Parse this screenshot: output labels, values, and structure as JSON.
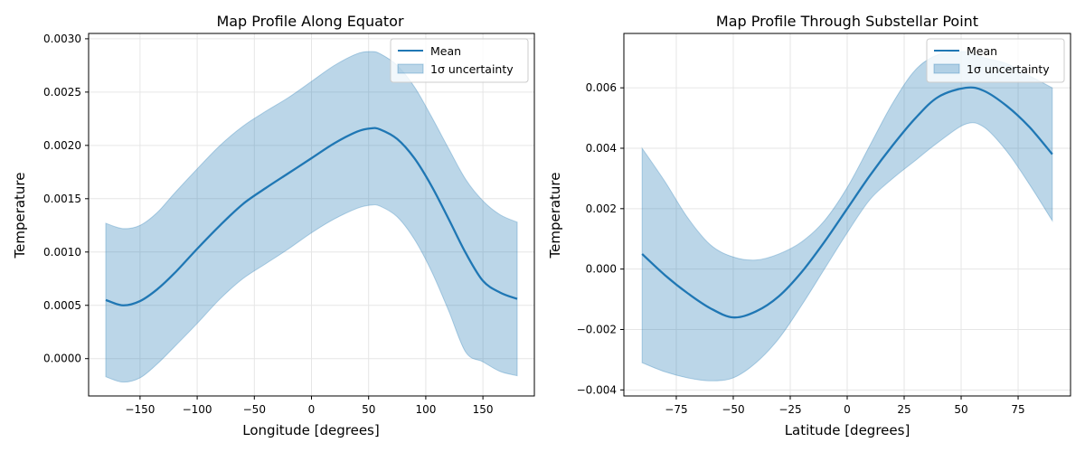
{
  "chart_data": [
    {
      "type": "line",
      "title": "Map Profile Along Equator",
      "xlabel": "Longitude [degrees]",
      "ylabel": "Temperature",
      "xlim": [
        -195,
        195
      ],
      "ylim": [
        -0.00035,
        0.00305
      ],
      "xticks": [
        -150,
        -100,
        -50,
        0,
        50,
        100,
        150
      ],
      "xtick_labels": [
        "−150",
        "−100",
        "−50",
        "0",
        "50",
        "100",
        "150"
      ],
      "yticks": [
        0.0,
        0.0005,
        0.001,
        0.0015,
        0.002,
        0.0025,
        0.003
      ],
      "ytick_labels": [
        "0.0000",
        "0.0005",
        "0.0010",
        "0.0015",
        "0.0020",
        "0.0025",
        "0.0030"
      ],
      "grid": true,
      "legend_position": "top-right",
      "legend": [
        "Mean",
        "1σ uncertainty"
      ],
      "colors": {
        "line": "#1f77b4",
        "band": "#1f77b4"
      },
      "series": [
        {
          "name": "Mean",
          "x": [
            -180,
            -165,
            -150,
            -135,
            -120,
            -100,
            -80,
            -60,
            -40,
            -20,
            0,
            20,
            40,
            52,
            60,
            75,
            90,
            105,
            120,
            135,
            150,
            165,
            180
          ],
          "values": [
            0.00055,
            0.0005,
            0.00054,
            0.00065,
            0.0008,
            0.00103,
            0.00125,
            0.00145,
            0.0016,
            0.00174,
            0.00188,
            0.00202,
            0.00213,
            0.00216,
            0.00215,
            0.00206,
            0.00188,
            0.00162,
            0.00131,
            0.00099,
            0.00073,
            0.00062,
            0.00056
          ]
        },
        {
          "name": "1σ uncertainty",
          "x": [
            -180,
            -165,
            -150,
            -135,
            -120,
            -100,
            -80,
            -60,
            -40,
            -20,
            0,
            20,
            40,
            52,
            60,
            75,
            90,
            105,
            120,
            135,
            150,
            165,
            180
          ],
          "upper": [
            0.00127,
            0.00122,
            0.00125,
            0.00137,
            0.00155,
            0.00178,
            0.002,
            0.00218,
            0.00232,
            0.00245,
            0.0026,
            0.00275,
            0.00286,
            0.00288,
            0.00286,
            0.00275,
            0.00255,
            0.00227,
            0.00197,
            0.00168,
            0.00148,
            0.00135,
            0.00128
          ],
          "lower": [
            -0.00017,
            -0.00022,
            -0.00018,
            -5e-05,
            0.00011,
            0.00033,
            0.00056,
            0.00075,
            0.00089,
            0.00103,
            0.00118,
            0.00131,
            0.00141,
            0.00144,
            0.00143,
            0.00133,
            0.00112,
            0.00082,
            0.00045,
            6e-05,
            -3e-05,
            -0.00012,
            -0.00016
          ]
        }
      ]
    },
    {
      "type": "line",
      "title": "Map Profile Through Substellar Point",
      "xlabel": "Latitude [degrees]",
      "ylabel": "Temperature",
      "xlim": [
        -98,
        98
      ],
      "ylim": [
        -0.0042,
        0.0078
      ],
      "xticks": [
        -75,
        -50,
        -25,
        0,
        25,
        50,
        75
      ],
      "xtick_labels": [
        "−75",
        "−50",
        "−25",
        "0",
        "25",
        "50",
        "75"
      ],
      "yticks": [
        -0.004,
        -0.002,
        0.0,
        0.002,
        0.004,
        0.006
      ],
      "ytick_labels": [
        "−0.004",
        "−0.002",
        "0.000",
        "0.002",
        "0.004",
        "0.006"
      ],
      "grid": true,
      "legend_position": "top-right",
      "legend": [
        "Mean",
        "1σ uncertainty"
      ],
      "colors": {
        "line": "#1f77b4",
        "band": "#1f77b4"
      },
      "series": [
        {
          "name": "Mean",
          "x": [
            -90,
            -80,
            -70,
            -60,
            -50,
            -40,
            -30,
            -20,
            -10,
            0,
            10,
            20,
            30,
            40,
            52,
            60,
            70,
            80,
            90
          ],
          "values": [
            0.0005,
            -0.0002,
            -0.0008,
            -0.0013,
            -0.0016,
            -0.0014,
            -0.0009,
            -0.0001,
            0.0009,
            0.002,
            0.0031,
            0.0041,
            0.005,
            0.0057,
            0.006,
            0.0059,
            0.0054,
            0.0047,
            0.0038
          ]
        },
        {
          "name": "1σ uncertainty",
          "x": [
            -90,
            -80,
            -70,
            -60,
            -50,
            -40,
            -30,
            -20,
            -10,
            0,
            10,
            20,
            30,
            40,
            52,
            60,
            70,
            80,
            90
          ],
          "upper": [
            0.004,
            0.0029,
            0.0017,
            0.0008,
            0.0004,
            0.0003,
            0.0005,
            0.0009,
            0.0016,
            0.0027,
            0.0041,
            0.0055,
            0.0066,
            0.0071,
            0.0072,
            0.007,
            0.0068,
            0.0064,
            0.006
          ],
          "lower": [
            -0.0031,
            -0.0034,
            -0.0036,
            -0.0037,
            -0.0036,
            -0.0031,
            -0.0023,
            -0.0012,
            0.0,
            0.0012,
            0.0023,
            0.003,
            0.0036,
            0.0042,
            0.0048,
            0.0047,
            0.0039,
            0.0028,
            0.0016
          ]
        }
      ]
    }
  ]
}
